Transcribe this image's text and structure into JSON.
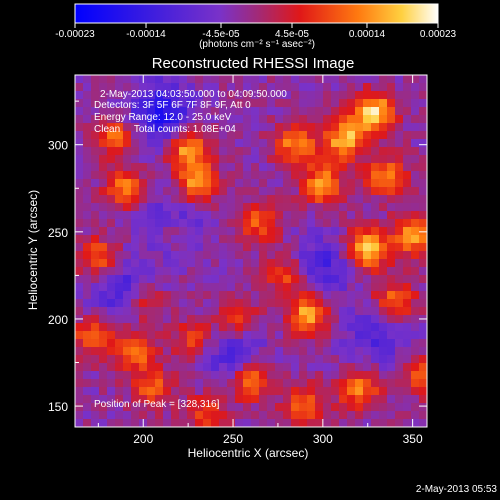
{
  "chart_data": {
    "type": "heatmap",
    "title": "Reconstructed RHESSI Image",
    "xlabel": "Heliocentric X (arcsec)",
    "ylabel": "Heliocentric Y (arcsec)",
    "xlim": [
      162,
      358
    ],
    "ylim": [
      138,
      340
    ],
    "x_ticks": [
      200,
      250,
      300,
      350
    ],
    "y_ticks": [
      150,
      200,
      250,
      300
    ],
    "colorbar": {
      "label": "(photons cm⁻² s⁻¹ asec⁻²)",
      "range": [
        -0.00023,
        0.00023
      ],
      "tick_labels": [
        "-0.00023",
        "-0.00014",
        "-4.5e-05",
        "4.5e-05",
        "0.00014",
        "0.00023"
      ],
      "tick_values": [
        -0.00023,
        -0.00014,
        -4.5e-05,
        4.5e-05,
        0.00014,
        0.00023
      ]
    },
    "annotations": [
      "2-May-2013 04:03:50.000 to 04:09:50.000",
      "Detectors: 3F 5F 6F 7F 8F 9F, Att 0",
      "Energy Range: 12.0 - 25.0 keV",
      "Clean     Total counts: 1.08E+04"
    ],
    "peak_label": "Position of Peak = [328,316]",
    "peak_position": [
      328,
      316
    ],
    "hotspots": [
      {
        "x": 328,
        "y": 318,
        "value": 0.00023
      },
      {
        "x": 312,
        "y": 303,
        "value": 0.00019
      },
      {
        "x": 285,
        "y": 300,
        "value": 0.00016
      },
      {
        "x": 225,
        "y": 298,
        "value": 0.00018
      },
      {
        "x": 185,
        "y": 305,
        "value": 0.00013
      },
      {
        "x": 300,
        "y": 277,
        "value": 0.00016
      },
      {
        "x": 335,
        "y": 282,
        "value": 0.00015
      },
      {
        "x": 230,
        "y": 278,
        "value": 0.00017
      },
      {
        "x": 190,
        "y": 275,
        "value": 0.00014
      },
      {
        "x": 265,
        "y": 255,
        "value": 0.00012
      },
      {
        "x": 215,
        "y": 250,
        "value": 0.00011
      },
      {
        "x": 325,
        "y": 240,
        "value": 0.00022
      },
      {
        "x": 350,
        "y": 248,
        "value": 0.00016
      },
      {
        "x": 175,
        "y": 235,
        "value": 0.00013
      },
      {
        "x": 280,
        "y": 225,
        "value": 0.00012
      },
      {
        "x": 200,
        "y": 210,
        "value": 0.00012
      },
      {
        "x": 292,
        "y": 203,
        "value": 0.00018
      },
      {
        "x": 340,
        "y": 210,
        "value": 0.00015
      },
      {
        "x": 252,
        "y": 200,
        "value": 0.00013
      },
      {
        "x": 172,
        "y": 190,
        "value": 0.00014
      },
      {
        "x": 228,
        "y": 188,
        "value": 0.00011
      },
      {
        "x": 195,
        "y": 182,
        "value": 0.00016
      },
      {
        "x": 260,
        "y": 165,
        "value": 0.00017
      },
      {
        "x": 320,
        "y": 160,
        "value": 0.00016
      },
      {
        "x": 355,
        "y": 168,
        "value": 0.00012
      },
      {
        "x": 205,
        "y": 160,
        "value": 0.00012
      },
      {
        "x": 290,
        "y": 150,
        "value": 0.00014
      },
      {
        "x": 235,
        "y": 145,
        "value": 0.00011
      }
    ],
    "coldspots": [
      {
        "x": 210,
        "y": 318,
        "value": -0.00016
      },
      {
        "x": 215,
        "y": 253,
        "value": -0.00012
      },
      {
        "x": 190,
        "y": 215,
        "value": -0.00011
      },
      {
        "x": 300,
        "y": 230,
        "value": -0.0001
      },
      {
        "x": 250,
        "y": 180,
        "value": -0.0001
      },
      {
        "x": 330,
        "y": 190,
        "value": -9e-05
      }
    ]
  },
  "footer": {
    "timestamp": "2-May-2013 05:53"
  }
}
